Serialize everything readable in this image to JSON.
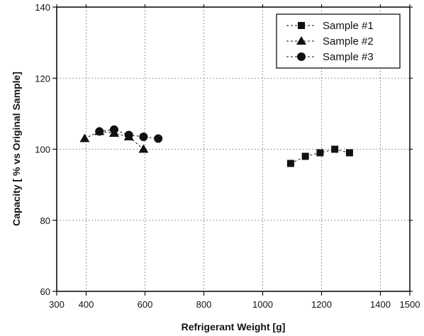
{
  "chart_data": {
    "type": "scatter",
    "xlabel": "Refrigerant Weight [g]",
    "ylabel": "Capacity [ % vs Original Sample]",
    "xlim": [
      300,
      1500
    ],
    "ylim": [
      60,
      140
    ],
    "x_ticks": [
      300,
      400,
      600,
      800,
      1000,
      1200,
      1400,
      1500
    ],
    "y_ticks": [
      60,
      80,
      100,
      120,
      140
    ],
    "x_grid": [
      400,
      600,
      800,
      1000,
      1200,
      1400
    ],
    "y_grid": [
      80,
      100,
      120
    ],
    "grid": true,
    "legend_position": "top-right",
    "series": [
      {
        "name": "Sample #1",
        "marker": "square",
        "x": [
          1095,
          1145,
          1195,
          1245,
          1295
        ],
        "y": [
          96,
          98,
          99,
          100,
          99
        ]
      },
      {
        "name": "Sample #2",
        "marker": "triangle",
        "x": [
          395,
          445,
          495,
          545,
          595
        ],
        "y": [
          103,
          105,
          104.5,
          103.5,
          100
        ]
      },
      {
        "name": "Sample #3",
        "marker": "circle",
        "x": [
          445,
          495,
          545,
          595,
          645
        ],
        "y": [
          105,
          105.5,
          104,
          103.5,
          103
        ]
      }
    ]
  }
}
